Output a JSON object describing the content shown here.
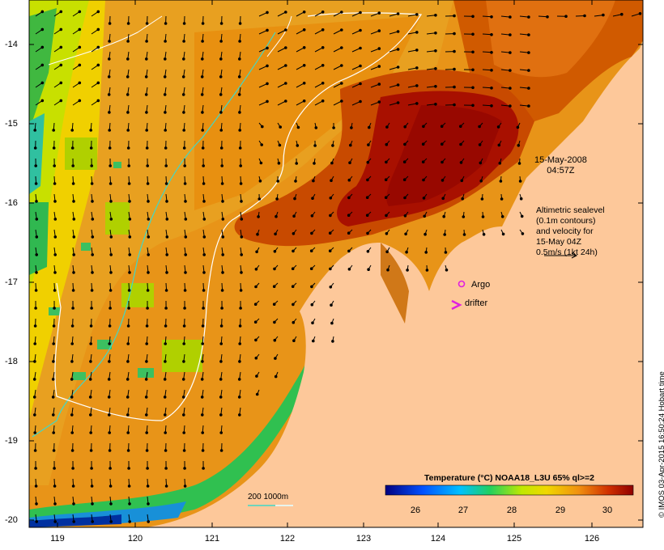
{
  "map": {
    "lat_ticks": [
      "-14",
      "-15",
      "-16",
      "-17",
      "-18",
      "-19",
      "-20"
    ],
    "lon_ticks": [
      "119",
      "120",
      "121",
      "122",
      "123",
      "124",
      "125",
      "126"
    ],
    "date_line1": "15-May-2008",
    "date_line2": "04:57Z",
    "altimetry_lines": [
      "Altimetric sealevel",
      "(0.1m contours)",
      "and velocity for",
      "15-May 04Z",
      "0.5m/s (1kt 24h)"
    ],
    "argo_label": "Argo",
    "drifter_label": "drifter",
    "depth_label": "200  1000m",
    "colorbar_title": "Temperature (°C) NOAA18_L3U 65% ql>=2",
    "colorbar_ticks": [
      "26",
      "27",
      "28",
      "29",
      "30"
    ],
    "credit": "© IMOS 03-Apr-2015 16:50:24 Hobart time",
    "colors": {
      "land": "#fdc89a",
      "warm_core": "#a10a00",
      "orange": "#e08a10",
      "yellow": "#e8e800",
      "green": "#30c040",
      "isobath_200": "#40d8c8",
      "isobath_1000": "#ffffff",
      "argo_marker": "#e020e0"
    }
  }
}
